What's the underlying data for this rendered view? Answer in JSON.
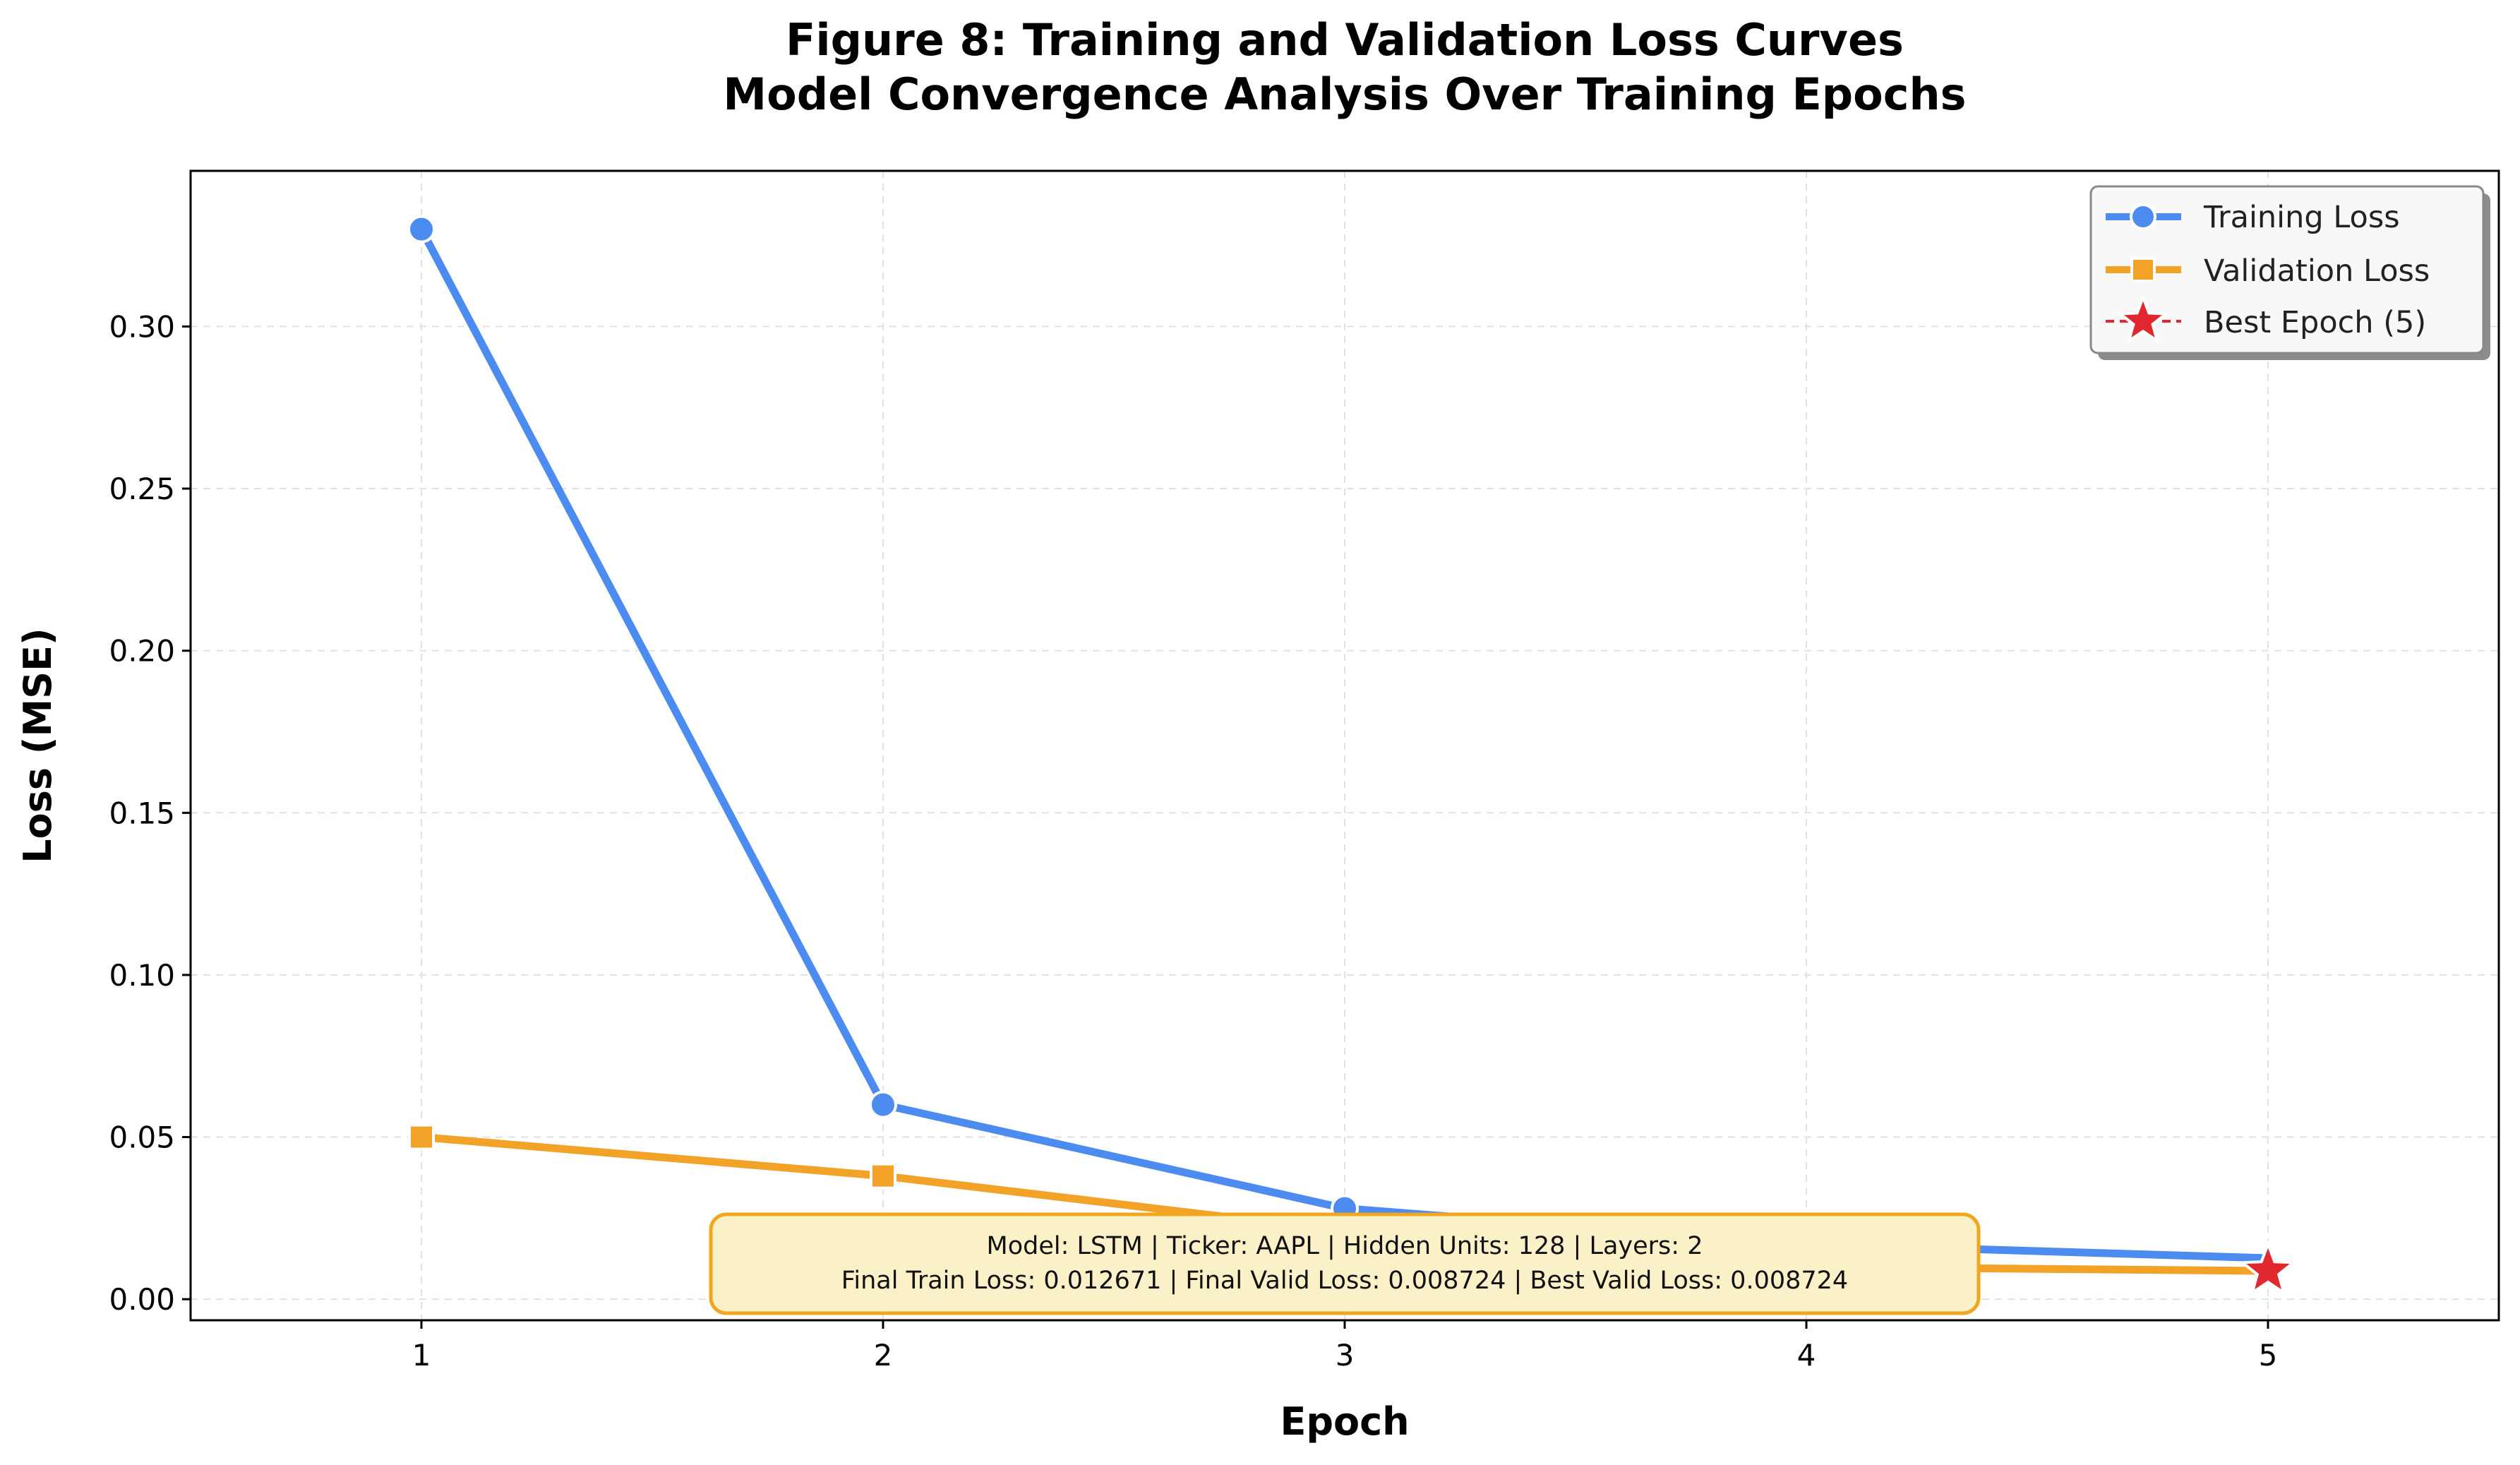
{
  "chart_data": {
    "type": "line",
    "title": "Figure 8: Training and Validation Loss Curves",
    "subtitle": "Model Convergence Analysis Over Training Epochs",
    "xlabel": "Epoch",
    "ylabel": "Loss (MSE)",
    "x": [
      1,
      2,
      3,
      4,
      5
    ],
    "xlim": [
      0.5,
      5.5
    ],
    "ylim": [
      -0.0065,
      0.348
    ],
    "x_ticks": [
      "1",
      "2",
      "3",
      "4",
      "5"
    ],
    "y_ticks": [
      "0.00",
      "0.05",
      "0.10",
      "0.15",
      "0.20",
      "0.25",
      "0.30"
    ],
    "grid": true,
    "legend_position": "top-right",
    "series": [
      {
        "name": "Training Loss",
        "values": [
          0.33,
          0.06,
          0.028,
          0.017,
          0.012671
        ],
        "color": "#4c8bf0",
        "marker": "circle"
      },
      {
        "name": "Validation Loss",
        "values": [
          0.05,
          0.038,
          0.021,
          0.01,
          0.008724
        ],
        "color": "#f2a227",
        "marker": "square"
      }
    ],
    "best_epoch": {
      "name": "Best Epoch (5)",
      "x": 5,
      "y": 0.008724,
      "color": "#e0282e",
      "marker": "star"
    },
    "info_box": {
      "line1": "Model: LSTM  |  Ticker: AAPL  |  Hidden Units: 128  |  Layers: 2",
      "line2": "Final Train Loss: 0.012671  |  Final Valid Loss: 0.008724  |  Best Valid Loss: 0.008724"
    }
  }
}
